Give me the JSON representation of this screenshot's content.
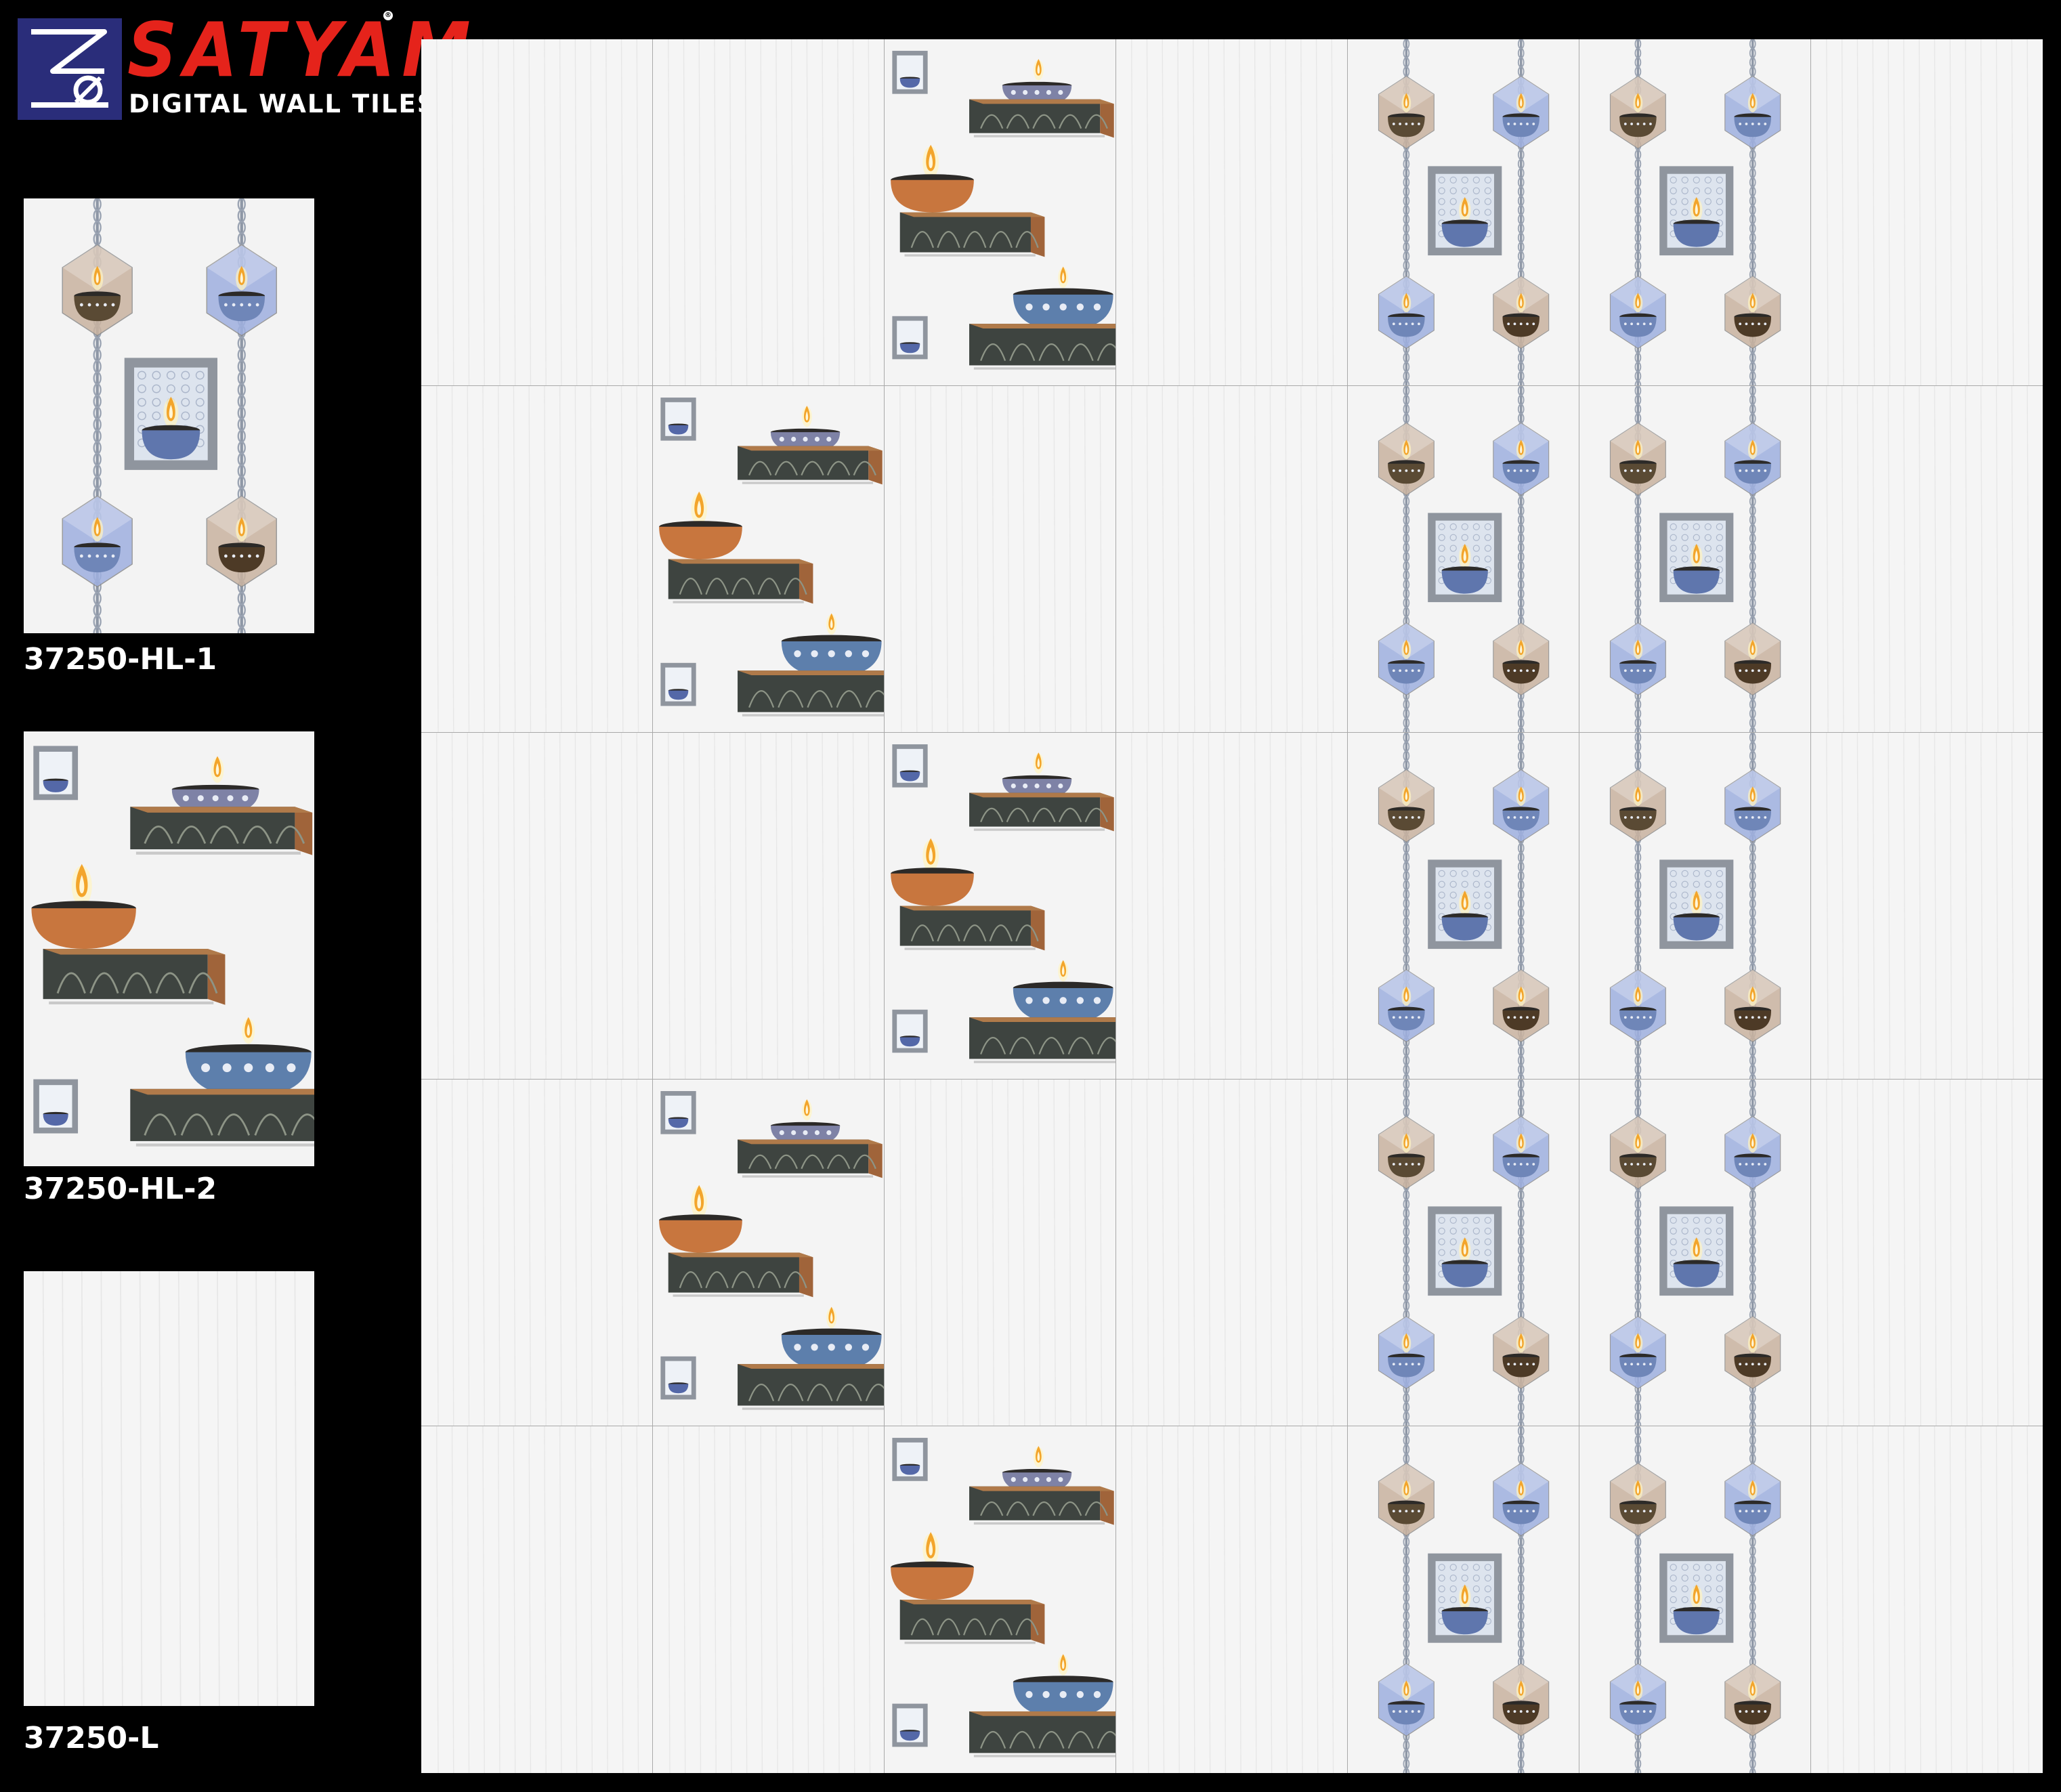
{
  "brand": {
    "name": "SATYAM",
    "registered_mark": "®",
    "tagline": "DIGITAL WALL TILES",
    "color_name": "#e5231b",
    "color_mark_bg": "#2a2d7a"
  },
  "samples": [
    {
      "code": "37250-HL-1",
      "pattern": "hanging-lanterns"
    },
    {
      "code": "37250-HL-2",
      "pattern": "diya-pedestals"
    },
    {
      "code": "37250-L",
      "pattern": "plain-light"
    }
  ],
  "wall_layout": {
    "columns": 7,
    "rows": 5,
    "grid": [
      [
        "37250-L",
        "37250-L",
        "37250-HL-2",
        "37250-L",
        "37250-HL-1",
        "37250-HL-1",
        "37250-L"
      ],
      [
        "37250-L",
        "37250-HL-2",
        "37250-L",
        "37250-L",
        "37250-HL-1",
        "37250-HL-1",
        "37250-L"
      ],
      [
        "37250-L",
        "37250-L",
        "37250-HL-2",
        "37250-L",
        "37250-HL-1",
        "37250-HL-1",
        "37250-L"
      ],
      [
        "37250-L",
        "37250-HL-2",
        "37250-L",
        "37250-L",
        "37250-HL-1",
        "37250-HL-1",
        "37250-L"
      ],
      [
        "37250-L",
        "37250-L",
        "37250-HL-2",
        "37250-L",
        "37250-HL-1",
        "37250-HL-1",
        "37250-L"
      ]
    ]
  },
  "colors": {
    "tile_background": "#f4f4f4",
    "tile_joint": "#a9a9a9",
    "lantern_beige": "#c9b3a0",
    "lantern_blue": "#9fb0e0",
    "diya_orange": "#c8763e",
    "diya_blue": "#6f86b8",
    "pedestal_stone": "#3e4440"
  }
}
